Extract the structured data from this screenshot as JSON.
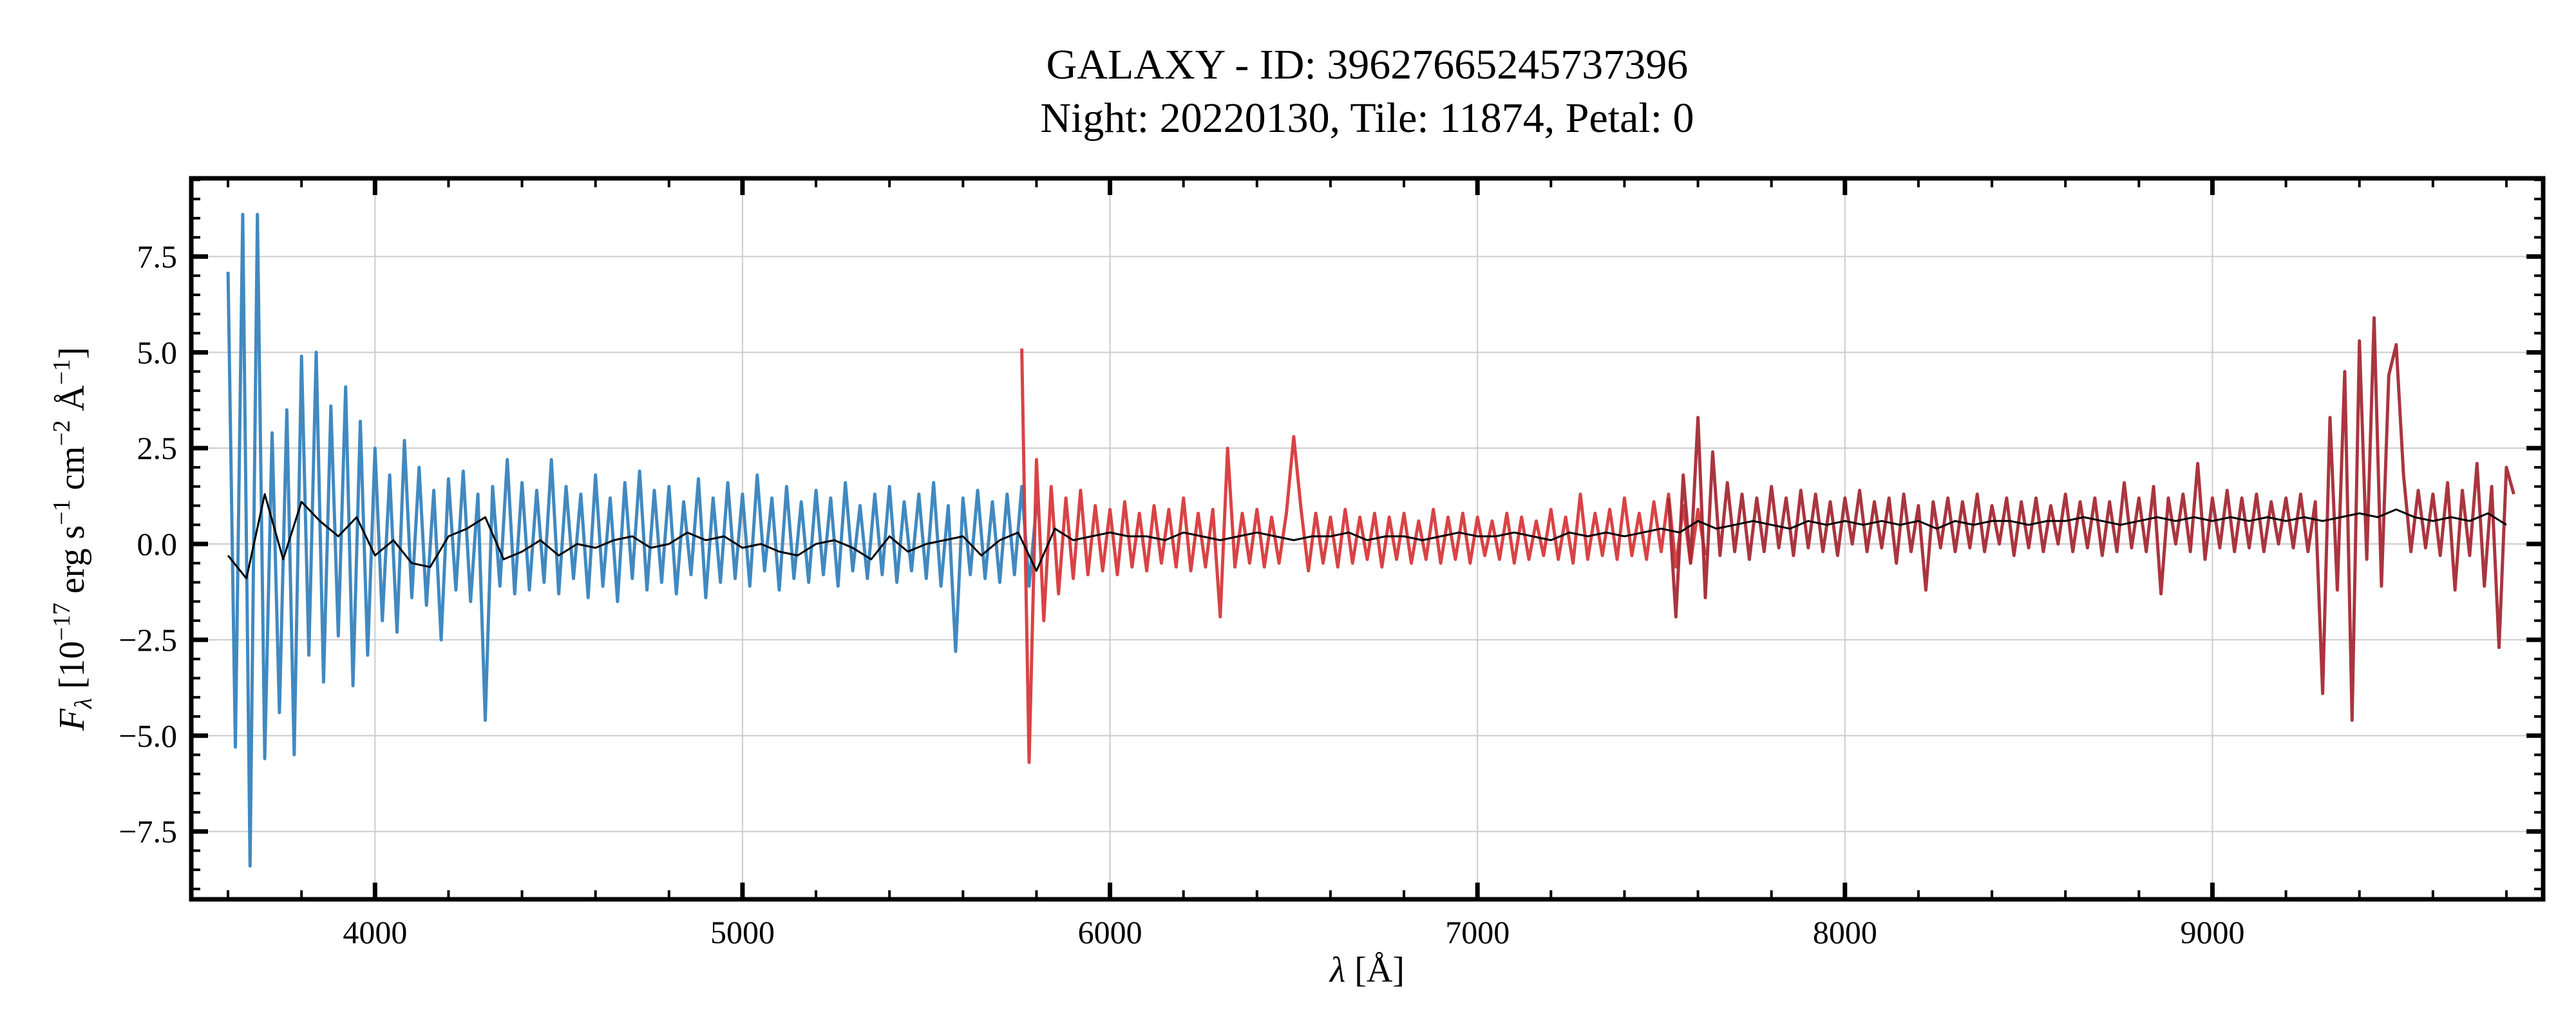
{
  "chart_data": {
    "type": "line",
    "title": "GALAXY - ID: 39627665245737396",
    "subtitle": "Night: 20220130, Tile: 11874, Petal: 0",
    "xlabel": {
      "symbol": "λ",
      "unit": " [Å]"
    },
    "ylabel": {
      "symbol": "F",
      "sub": "λ",
      "prefix": " [10",
      "exp1": "−17",
      "erg": " erg s",
      "exp2": "−1",
      "cm": " cm",
      "exp3": "−2",
      "ang": " Å",
      "exp4": "−1",
      "close": "]"
    },
    "xlim": [
      3500,
      9900
    ],
    "ylim": [
      -9.27,
      9.54
    ],
    "x_ticks": [
      4000,
      5000,
      6000,
      7000,
      8000,
      9000
    ],
    "x_tick_labels": [
      "4000",
      "5000",
      "6000",
      "7000",
      "8000",
      "9000"
    ],
    "y_ticks": [
      -7.5,
      -5.0,
      -2.5,
      0.0,
      2.5,
      5.0,
      7.5
    ],
    "y_tick_labels": [
      "−7.5",
      "−5.0",
      "−2.5",
      "0.0",
      "2.5",
      "5.0",
      "7.5"
    ],
    "x_minor_step": 200,
    "y_minor_step": 0.5,
    "grid": true,
    "series": [
      {
        "color": "#3783bd",
        "x_start": 3600,
        "x_step": 20,
        "y": [
          7.1,
          -5.3,
          8.6,
          -8.4,
          8.6,
          -5.6,
          2.9,
          -4.4,
          3.5,
          -5.5,
          4.9,
          -2.9,
          5.0,
          -3.6,
          3.6,
          -2.4,
          4.1,
          -3.7,
          3.2,
          -2.9,
          2.5,
          -2.0,
          1.8,
          -2.3,
          2.7,
          -1.4,
          2.0,
          -1.6,
          1.4,
          -2.5,
          1.7,
          -1.2,
          1.9,
          -1.5,
          1.3,
          -4.6,
          1.5,
          -1.1,
          2.2,
          -1.3,
          1.6,
          -1.2,
          1.4,
          -1.0,
          2.2,
          -1.3,
          1.5,
          -0.9,
          1.3,
          -1.4,
          1.8,
          -1.1,
          1.2,
          -1.5,
          1.6,
          -0.9,
          1.9,
          -1.2,
          1.4,
          -1.0,
          1.5,
          -1.3,
          1.1,
          -0.8,
          1.7,
          -1.4,
          1.2,
          -1.0,
          1.6,
          -0.9,
          1.3,
          -1.1,
          1.8,
          -0.7,
          1.2,
          -1.2,
          1.5,
          -0.9,
          1.1,
          -1.0,
          1.4,
          -0.8,
          1.2,
          -1.1,
          1.6,
          -0.7,
          1.0,
          -0.9,
          1.3,
          -0.8,
          1.5,
          -1.0,
          1.1,
          -0.7,
          1.3,
          -0.9,
          1.6,
          -1.1,
          1.0,
          -2.8,
          1.2,
          -0.8,
          1.4,
          -0.9,
          1.1,
          -1.0,
          1.3,
          -0.8,
          1.5,
          -1.1,
          1.0
        ]
      },
      {
        "color": "#d7393b",
        "x_start": 5760,
        "x_step": 20,
        "y": [
          5.1,
          -5.7,
          2.2,
          -2.0,
          1.5,
          -1.3,
          1.2,
          -0.9,
          1.4,
          -0.8,
          1.0,
          -0.7,
          0.9,
          -0.8,
          1.1,
          -0.6,
          0.8,
          -0.7,
          1.0,
          -0.5,
          0.9,
          -0.6,
          1.2,
          -0.7,
          0.8,
          -0.6,
          0.9,
          -1.9,
          2.5,
          -0.6,
          0.8,
          -0.5,
          0.9,
          -0.6,
          0.7,
          -0.5,
          0.8,
          2.8,
          0.9,
          -0.7,
          0.8,
          -0.5,
          0.7,
          -0.6,
          0.9,
          -0.5,
          0.7,
          -0.4,
          0.8,
          -0.6,
          0.7,
          -0.4,
          0.8,
          -0.5,
          0.6,
          -0.4,
          0.9,
          -0.5,
          0.7,
          -0.4,
          0.8,
          -0.5,
          0.7,
          -0.3,
          0.6,
          -0.4,
          0.8,
          -0.5,
          0.7,
          -0.4,
          0.6,
          -0.3,
          0.9,
          -0.4,
          0.7,
          -0.5,
          1.3,
          -0.4,
          0.8,
          -0.3,
          0.9,
          -0.4,
          1.2,
          -0.3,
          0.8,
          -0.4,
          1.1,
          -0.2,
          1.3,
          -0.6,
          1.0,
          -0.5,
          0.9,
          -0.3
        ]
      },
      {
        "color": "#a52a35",
        "x_start": 7520,
        "x_step": 20,
        "y": [
          1.2,
          -1.9,
          1.8,
          -0.5,
          3.3,
          -1.4,
          2.4,
          -0.3,
          1.6,
          -0.2,
          1.3,
          -0.4,
          1.2,
          -0.2,
          1.5,
          -0.1,
          1.2,
          -0.3,
          1.4,
          -0.1,
          1.3,
          -0.2,
          1.1,
          -0.3,
          1.2,
          0.0,
          1.4,
          -0.2,
          1.1,
          -0.1,
          1.2,
          -0.5,
          1.3,
          -0.2,
          1.0,
          -1.2,
          1.1,
          -0.1,
          1.2,
          -0.2,
          1.1,
          -0.1,
          1.3,
          -0.2,
          1.0,
          0.0,
          1.2,
          -0.3,
          1.1,
          -0.1,
          1.2,
          -0.2,
          1.0,
          0.0,
          1.3,
          -0.2,
          1.1,
          -0.1,
          1.2,
          -0.3,
          1.1,
          -0.2,
          1.6,
          -0.1,
          1.2,
          -0.2,
          1.5,
          -1.3,
          1.2,
          0.0,
          1.3,
          -0.2,
          2.1,
          -0.4,
          1.2,
          -0.1,
          1.4,
          -0.2,
          1.2,
          -0.1,
          1.3,
          -0.2,
          1.1,
          0.0,
          1.2,
          -0.1,
          1.3,
          -0.2,
          1.1,
          -3.9,
          3.3,
          -1.2,
          4.5,
          -4.6,
          5.3,
          -0.4,
          5.9,
          -1.1,
          4.4,
          5.2,
          1.8,
          -0.2,
          1.4,
          -0.1,
          1.3,
          -0.3,
          1.6,
          -1.2,
          1.4,
          -0.3,
          2.1,
          -1.1,
          1.5,
          -2.7,
          2.0,
          1.3
        ]
      },
      {
        "color": "#000000",
        "x_start": 3600,
        "x_step": 50,
        "y": [
          -0.3,
          -0.9,
          1.3,
          -0.4,
          1.1,
          0.6,
          0.2,
          0.7,
          -0.3,
          0.1,
          -0.5,
          -0.6,
          0.2,
          0.4,
          0.7,
          -0.4,
          -0.2,
          0.1,
          -0.3,
          0.0,
          -0.1,
          0.1,
          0.2,
          -0.1,
          0.0,
          0.3,
          0.1,
          0.2,
          -0.1,
          0.0,
          -0.2,
          -0.3,
          0.0,
          0.1,
          -0.1,
          -0.4,
          0.2,
          -0.2,
          0.0,
          0.1,
          0.2,
          -0.3,
          0.1,
          0.3,
          -0.7,
          0.4,
          0.1,
          0.2,
          0.3,
          0.2,
          0.2,
          0.1,
          0.3,
          0.2,
          0.1,
          0.2,
          0.3,
          0.2,
          0.1,
          0.2,
          0.2,
          0.3,
          0.1,
          0.2,
          0.2,
          0.1,
          0.2,
          0.3,
          0.2,
          0.2,
          0.3,
          0.2,
          0.1,
          0.3,
          0.2,
          0.3,
          0.2,
          0.3,
          0.4,
          0.3,
          0.6,
          0.4,
          0.5,
          0.6,
          0.5,
          0.4,
          0.6,
          0.5,
          0.6,
          0.5,
          0.6,
          0.5,
          0.6,
          0.4,
          0.6,
          0.5,
          0.6,
          0.6,
          0.5,
          0.6,
          0.6,
          0.7,
          0.6,
          0.5,
          0.6,
          0.7,
          0.6,
          0.7,
          0.6,
          0.7,
          0.6,
          0.7,
          0.6,
          0.7,
          0.6,
          0.7,
          0.8,
          0.7,
          0.9,
          0.7,
          0.6,
          0.7,
          0.6,
          0.8,
          0.5
        ]
      }
    ]
  }
}
